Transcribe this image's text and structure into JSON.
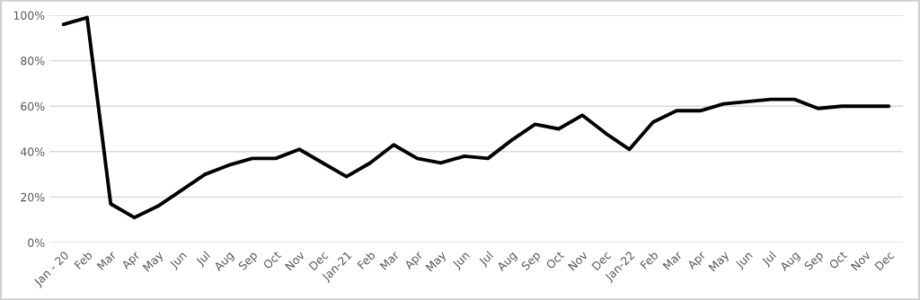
{
  "chart_data": {
    "type": "line",
    "categories": [
      "Jan - 20",
      "Feb",
      "Mar",
      "Apr",
      "May",
      "Jun",
      "Jul",
      "Aug",
      "Sep",
      "Oct",
      "Nov",
      "Dec",
      "Jan-21",
      "Feb",
      "Mar",
      "Apr",
      "May",
      "Jun",
      "Jul",
      "Aug",
      "Sep",
      "Oct",
      "Nov",
      "Dec",
      "Jan-22",
      "Feb",
      "Mar",
      "Apr",
      "May",
      "Jun",
      "Jul",
      "Aug",
      "Sep",
      "Oct",
      "Nov",
      "Dec"
    ],
    "series": [
      {
        "color": "#000000",
        "values": [
          96,
          99,
          17,
          11,
          16,
          23,
          30,
          34,
          37,
          37,
          41,
          35,
          29,
          35,
          43,
          37,
          35,
          38,
          37,
          45,
          52,
          50,
          56,
          48,
          41,
          53,
          58,
          58,
          61,
          62,
          63,
          63,
          59,
          60,
          60,
          60
        ]
      }
    ],
    "ylim": [
      0,
      100
    ],
    "yticks": [
      {
        "value": 0,
        "label": "0%"
      },
      {
        "value": 20,
        "label": "20%"
      },
      {
        "value": 40,
        "label": "40%"
      },
      {
        "value": 60,
        "label": "60%"
      },
      {
        "value": 80,
        "label": "80%"
      },
      {
        "value": 100,
        "label": "100%"
      }
    ],
    "grid": "y",
    "marker": "none",
    "line_style": "solid",
    "legend": false
  }
}
